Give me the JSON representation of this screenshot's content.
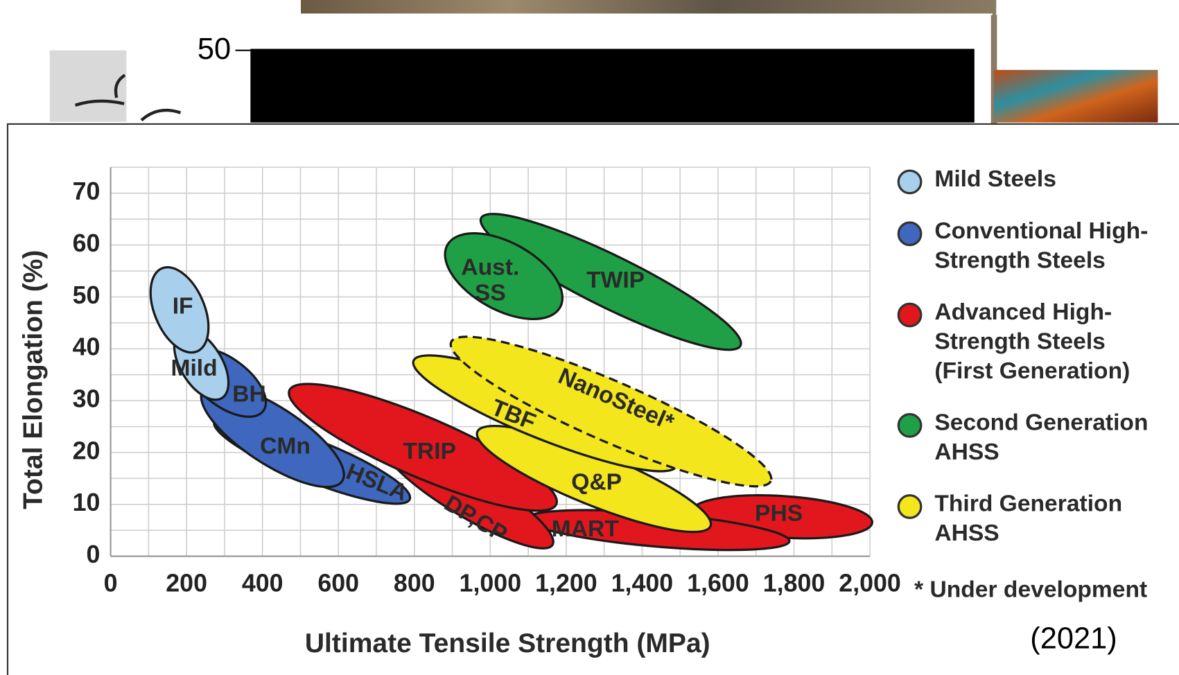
{
  "backdrop_tick": "50",
  "chart_data": {
    "type": "region",
    "x_label": "Ultimate Tensile Strength (MPa)",
    "y_label": "Total Elongation (%)",
    "annotation": "(2021)",
    "xlim": [
      0,
      2000
    ],
    "ylim": [
      0,
      75
    ],
    "xticks": [
      0,
      200,
      400,
      600,
      800,
      {
        "value": 1000,
        "label": "1,000"
      },
      {
        "value": 1200,
        "label": "1,200"
      },
      {
        "value": 1400,
        "label": "1,400"
      },
      {
        "value": 1600,
        "label": "1,600"
      },
      {
        "value": 1800,
        "label": "1,800"
      },
      {
        "value": 2000,
        "label": "2,000"
      }
    ],
    "yticks": [
      0,
      10,
      20,
      30,
      40,
      50,
      60,
      70
    ],
    "x_minor_grid": [
      100,
      300,
      500,
      700,
      900,
      1100,
      1300,
      1500,
      1700,
      1900
    ],
    "y_minor_grid": [
      5,
      15,
      25,
      35,
      45,
      55,
      65,
      75
    ],
    "grid": true,
    "legend_position": "right",
    "series": [
      {
        "name": [
          "Mild Steels"
        ],
        "color": "#a8d0ec"
      },
      {
        "name": [
          "Conventional High-",
          "Strength Steels"
        ],
        "color": "#3e67bd"
      },
      {
        "name": [
          "Advanced High-",
          "Strength Steels",
          "(First Generation)"
        ],
        "color": "#e2161d"
      },
      {
        "name": [
          "Second Generation",
          "AHSS"
        ],
        "color": "#20a046"
      },
      {
        "name": [
          "Third Generation",
          "AHSS"
        ],
        "color": "#f4e61c"
      }
    ],
    "footnote": "* Under development",
    "regions": [
      {
        "label": [
          "TWIP"
        ],
        "series": 3,
        "x": [
          976,
          1659
        ],
        "y": [
          65.2,
          40.6
        ],
        "spread": 5,
        "label_at": [
          1330,
          53
        ]
      },
      {
        "label": [
          "Aust.",
          "SS"
        ],
        "series": 3,
        "x": [
          887,
          1184
        ],
        "y": [
          60,
          48
        ],
        "spread": 6.5,
        "label_at": [
          1000,
          53
        ]
      },
      {
        "label": [
          "PHS"
        ],
        "series": 2,
        "x": [
          1531,
          2006
        ],
        "y": [
          8.7,
          6.5
        ],
        "spread": 4,
        "label_at": [
          1760,
          8
        ]
      },
      {
        "label": [
          "MART"
        ],
        "series": 2,
        "x": [
          1095,
          1788
        ],
        "y": [
          7.2,
          2.9
        ],
        "spread": 3.2,
        "label_at": [
          1250,
          5
        ]
      },
      {
        "label": [
          "DP,CP"
        ],
        "series": 2,
        "x": [
          719,
          1164
        ],
        "y": [
          21.7,
          2.2
        ],
        "spread": 4.3,
        "label_at": [
          960,
          7
        ],
        "tilted": true
      },
      {
        "label": [
          "TRIP"
        ],
        "series": 2,
        "x": [
          471,
          1174
        ],
        "y": [
          32,
          10
        ],
        "spread": 5.8,
        "label_at": [
          840,
          20
        ]
      },
      {
        "label": [
          "HSLA"
        ],
        "series": 1,
        "x": [
          273,
          788
        ],
        "y": [
          26,
          11
        ],
        "spread": 4,
        "label_at": [
          700,
          14
        ],
        "tilted": true
      },
      {
        "label": [
          "CMn"
        ],
        "series": 1,
        "x": [
          243,
          610
        ],
        "y": [
          32,
          14.5
        ],
        "spread": 5.5,
        "label_at": [
          460,
          21
        ]
      },
      {
        "label": [
          "BH"
        ],
        "series": 1,
        "x": [
          204,
          402
        ],
        "y": [
          39,
          28
        ],
        "spread": 4.6,
        "label_at": [
          365,
          31
        ]
      },
      {
        "label": [
          "Mild"
        ],
        "series": 0,
        "x": [
          185,
          293
        ],
        "y": [
          43.5,
          30.5
        ],
        "spread": 4,
        "label_at": [
          220,
          36
        ]
      },
      {
        "label": [
          "IF"
        ],
        "series": 0,
        "x": [
          135,
          228
        ],
        "y": [
          55.5,
          39.5
        ],
        "spread": 4.8,
        "label_at": [
          190,
          48
        ]
      },
      {
        "label": [
          "Q&P"
        ],
        "series": 4,
        "x": [
          966,
          1580
        ],
        "y": [
          24,
          5.8
        ],
        "spread": 5,
        "label_at": [
          1280,
          14
        ]
      },
      {
        "label": [
          "TBF"
        ],
        "series": 4,
        "x": [
          798,
          1491
        ],
        "y": [
          37.7,
          17.4
        ],
        "spread": 5,
        "label_at": [
          1060,
          27
        ],
        "tilted": true
      },
      {
        "label": [
          "NanoSteel*"
        ],
        "series": 4,
        "x": [
          897,
          1739
        ],
        "y": [
          41.3,
          14.5
        ],
        "spread": 5.8,
        "label_at": [
          1330,
          30
        ],
        "tilted": true,
        "dashed": true
      }
    ]
  }
}
